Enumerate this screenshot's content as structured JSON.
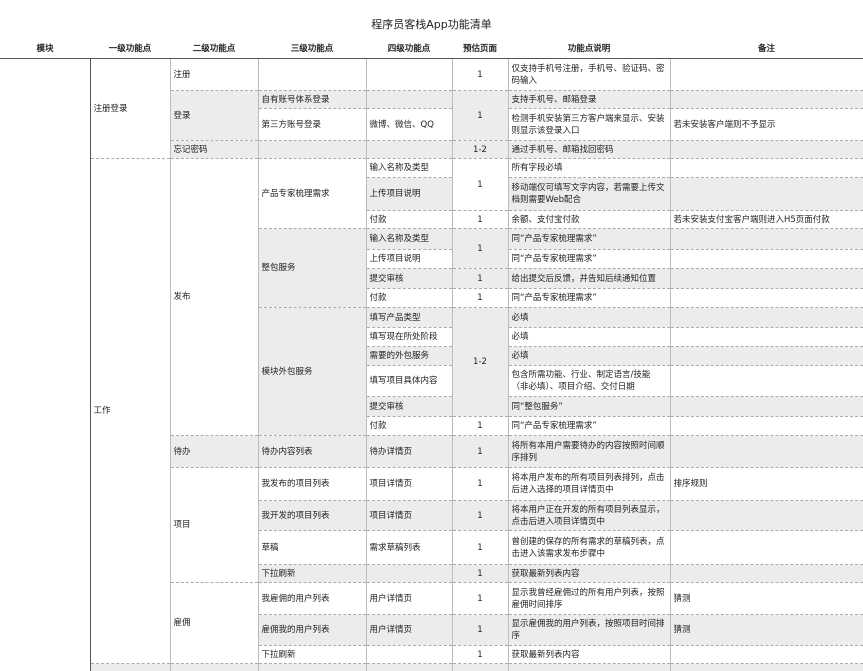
{
  "title": "程序员客栈App功能清单",
  "headers": [
    "模块",
    "一级功能点",
    "二级功能点",
    "三级功能点",
    "四级功能点",
    "预估页面",
    "功能点说明",
    "备注"
  ],
  "rows": [
    [
      "注册登录",
      "注册",
      "1",
      "仅支持手机号注册，手机号、验证码、密码输入"
    ],
    [
      "登录",
      "自有账号体系登录",
      "1",
      "支持手机号、邮箱登录"
    ],
    [
      "第三方账号登录",
      "微博、微信、QQ",
      "检测手机安装第三方客户端来显示、安装则显示该登录入口",
      "若未安装客户端则不予显示"
    ],
    [
      "忘记密码",
      "1-2",
      "通过手机号、邮箱找回密码"
    ],
    [
      "工作",
      "发布",
      "产品专家梳理需求",
      "输入名称及类型",
      "1",
      "所有字段必填"
    ],
    [
      "上传项目说明",
      "移动端仅可填写文字内容，若需要上传文档则需要Web配合"
    ],
    [
      "付款",
      "1",
      "余额、支付宝付款",
      "若未安装支付宝客户端则进入H5页面付款"
    ],
    [
      "整包服务",
      "输入名称及类型",
      "1",
      "同“产品专家梳理需求”"
    ],
    [
      "上传项目说明",
      "同“产品专家梳理需求”"
    ],
    [
      "提交审核",
      "1",
      "给出提交后反馈，并告知后续通知位置"
    ],
    [
      "付款",
      "1",
      "同“产品专家梳理需求”"
    ],
    [
      "模块外包服务",
      "填写产品类型",
      "1-2",
      "必填"
    ],
    [
      "填写现在所处阶段",
      "必填"
    ],
    [
      "需要的外包服务",
      "必填"
    ],
    [
      "填写项目具体内容",
      "包含所需功能、行业、制定语言/技能（非必填）、项目介绍、交付日期"
    ],
    [
      "提交审核",
      "同“整包服务”"
    ],
    [
      "付款",
      "1",
      "同“产品专家梳理需求”"
    ],
    [
      "待办",
      "待办内容列表",
      "待办详情页",
      "1",
      "将所有本用户需要待办的内容按照时间顺序排列"
    ],
    [
      "项目",
      "我发布的项目列表",
      "项目详情页",
      "1",
      "将本用户发布的所有项目列表排列，点击后进入选择的项目详情页中",
      "排序规则"
    ],
    [
      "我开发的项目列表",
      "项目详情页",
      "1",
      "将本用户正在开发的所有项目列表显示，点击后进入项目详情页中"
    ],
    [
      "草稿",
      "需求草稿列表",
      "1",
      "曾创建的保存的所有需求的草稿列表，点击进入该需求发布步骤中"
    ],
    [
      "下拉刷新",
      "1",
      "获取最新列表内容"
    ],
    [
      "雇佣",
      "我雇佣的用户列表",
      "用户详情页",
      "1",
      "显示我曾经雇佣过的所有用户列表，按照雇佣时间排序",
      "猜测"
    ],
    [
      "雇佣我的用户列表",
      "用户详情页",
      "1",
      "显示雇佣我的用户列表，按照项目时间排序",
      "猜测"
    ],
    [
      "下拉刷新",
      "1",
      "获取最新列表内容"
    ]
  ]
}
